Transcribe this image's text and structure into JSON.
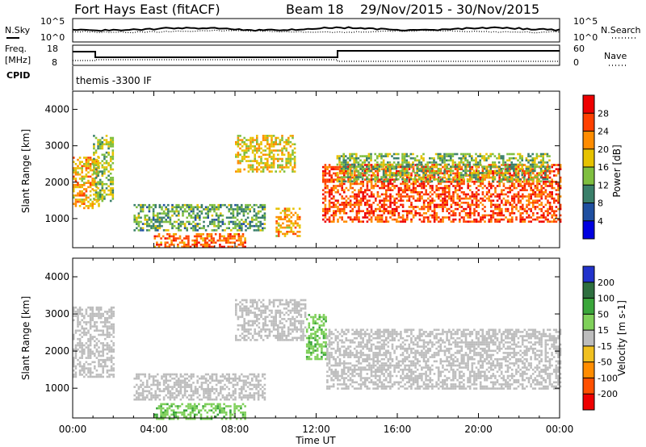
{
  "header": {
    "station": "Fort Hays East (fitACF)",
    "beam": "Beam 18",
    "dates": "29/Nov/2015 - 30/Nov/2015"
  },
  "noise_panel": {
    "left_label": "N.Sky",
    "right_label": "N.Search",
    "left_ticks": [
      "10^5",
      "10^0"
    ],
    "right_ticks": [
      "10^5",
      "10^0"
    ]
  },
  "freq_panel": {
    "left_label_1": "Freq.",
    "left_label_2": "[MHz]",
    "right_label": "Nave",
    "left_ticks": [
      "18",
      "8"
    ],
    "right_ticks": [
      "60",
      "0"
    ]
  },
  "cpid": {
    "label": "CPID",
    "value": "themis -3300 IF"
  },
  "x_axis": {
    "label": "Time UT",
    "ticks": [
      "00:00",
      "04:00",
      "08:00",
      "12:00",
      "16:00",
      "20:00",
      "00:00"
    ]
  },
  "colors": {
    "power_scale": [
      "#0000e0",
      "#1f4fa0",
      "#3a7f6a",
      "#7fbf3f",
      "#e6c200",
      "#ff8c00",
      "#ff4000",
      "#ee0000"
    ],
    "velocity_scale": [
      "#2233cc",
      "#2e6f3f",
      "#3aa63a",
      "#7fd05a",
      "#bdbdbd",
      "#f0c020",
      "#ff8c00",
      "#ff5000",
      "#ee0000"
    ]
  },
  "chart_data": [
    {
      "type": "heatmap",
      "title": "",
      "xlabel": "Time UT",
      "ylabel": "Slant Range [km]",
      "xlim_hours": [
        0,
        24
      ],
      "ylim": [
        200,
        4500
      ],
      "yticks": [
        1000,
        2000,
        3000,
        4000
      ],
      "colorbar": {
        "label": "Power [dB]",
        "ticks": [
          4,
          8,
          12,
          16,
          20,
          24,
          28
        ]
      },
      "regions": [
        {
          "t_start": 0.0,
          "t_end": 1.3,
          "r_low": 1300,
          "r_high": 2700,
          "value": 20
        },
        {
          "t_start": 1.0,
          "t_end": 2.0,
          "r_low": 1500,
          "r_high": 3300,
          "value": 14
        },
        {
          "t_start": 3.0,
          "t_end": 9.5,
          "r_low": 700,
          "r_high": 1400,
          "value": 12
        },
        {
          "t_start": 4.0,
          "t_end": 8.5,
          "r_low": 200,
          "r_high": 600,
          "value": 24
        },
        {
          "t_start": 8.0,
          "t_end": 11.0,
          "r_low": 2300,
          "r_high": 3300,
          "value": 18
        },
        {
          "t_start": 10.0,
          "t_end": 11.2,
          "r_low": 500,
          "r_high": 1300,
          "value": 20
        },
        {
          "t_start": 12.3,
          "t_end": 24.0,
          "r_low": 900,
          "r_high": 2500,
          "value": 26
        },
        {
          "t_start": 13.0,
          "t_end": 23.5,
          "r_low": 2000,
          "r_high": 2800,
          "value": 14
        }
      ]
    },
    {
      "type": "heatmap",
      "title": "",
      "xlabel": "Time UT",
      "ylabel": "Slant Range [km]",
      "xlim_hours": [
        0,
        24
      ],
      "ylim": [
        200,
        4500
      ],
      "yticks": [
        1000,
        2000,
        3000,
        4000
      ],
      "colorbar": {
        "label": "Velocity [m s-1]",
        "ticks": [
          200,
          100,
          50,
          15,
          -15,
          -50,
          -100,
          -200
        ]
      },
      "regions": [
        {
          "t_start": 0.0,
          "t_end": 2.0,
          "r_low": 1300,
          "r_high": 3200,
          "value": 0
        },
        {
          "t_start": 3.0,
          "t_end": 9.5,
          "r_low": 700,
          "r_high": 1400,
          "value": 0
        },
        {
          "t_start": 4.0,
          "t_end": 8.5,
          "r_low": 200,
          "r_high": 600,
          "value": 60
        },
        {
          "t_start": 8.0,
          "t_end": 11.5,
          "r_low": 2300,
          "r_high": 3400,
          "value": 0
        },
        {
          "t_start": 11.5,
          "t_end": 12.5,
          "r_low": 1800,
          "r_high": 3000,
          "value": 60
        },
        {
          "t_start": 12.5,
          "t_end": 24.0,
          "r_low": 1000,
          "r_high": 2600,
          "value": 0
        }
      ]
    }
  ]
}
